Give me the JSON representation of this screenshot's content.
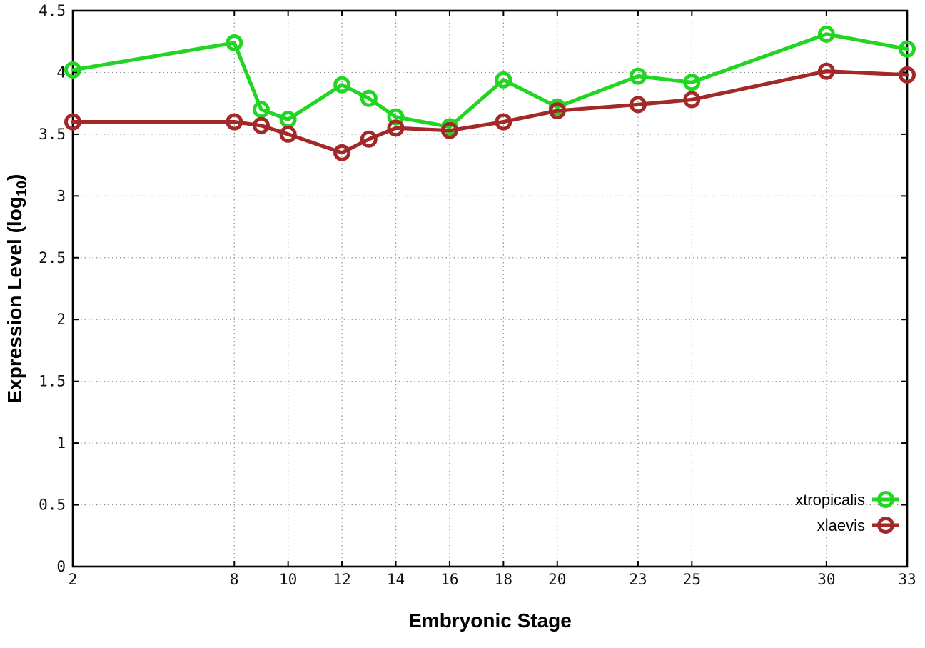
{
  "chart_data": {
    "type": "line",
    "title": "",
    "xlabel": "Embryonic Stage",
    "ylabel": {
      "prefix": "Expression Level (log",
      "subscript": "10",
      "suffix": ")"
    },
    "xlim": [
      2,
      33
    ],
    "ylim": [
      0,
      4.5
    ],
    "x_ticks": [
      2,
      8,
      10,
      12,
      14,
      16,
      18,
      20,
      23,
      25,
      30,
      33
    ],
    "y_ticks": [
      0,
      0.5,
      1,
      1.5,
      2,
      2.5,
      3,
      3.5,
      4,
      4.5
    ],
    "grid": true,
    "legend_position": "bottom-right",
    "marker": "open-circle",
    "series": [
      {
        "name": "xtropicalis",
        "color": "#23d523",
        "x": [
          2,
          8,
          9,
          10,
          12,
          13,
          14,
          16,
          18,
          20,
          23,
          25,
          30,
          33
        ],
        "y": [
          4.02,
          4.24,
          3.7,
          3.62,
          3.9,
          3.79,
          3.64,
          3.56,
          3.94,
          3.72,
          3.97,
          3.92,
          4.31,
          4.19
        ]
      },
      {
        "name": "xlaevis",
        "color": "#a32929",
        "x": [
          2,
          8,
          9,
          10,
          12,
          13,
          14,
          16,
          18,
          20,
          23,
          25,
          30,
          33
        ],
        "y": [
          3.6,
          3.6,
          3.57,
          3.5,
          3.35,
          3.46,
          3.55,
          3.53,
          3.6,
          3.69,
          3.74,
          3.78,
          4.01,
          3.98
        ]
      }
    ],
    "colors": {
      "background": "#ffffff",
      "axis": "#000000",
      "grid": "#909090",
      "tick_text": "#111111"
    }
  }
}
